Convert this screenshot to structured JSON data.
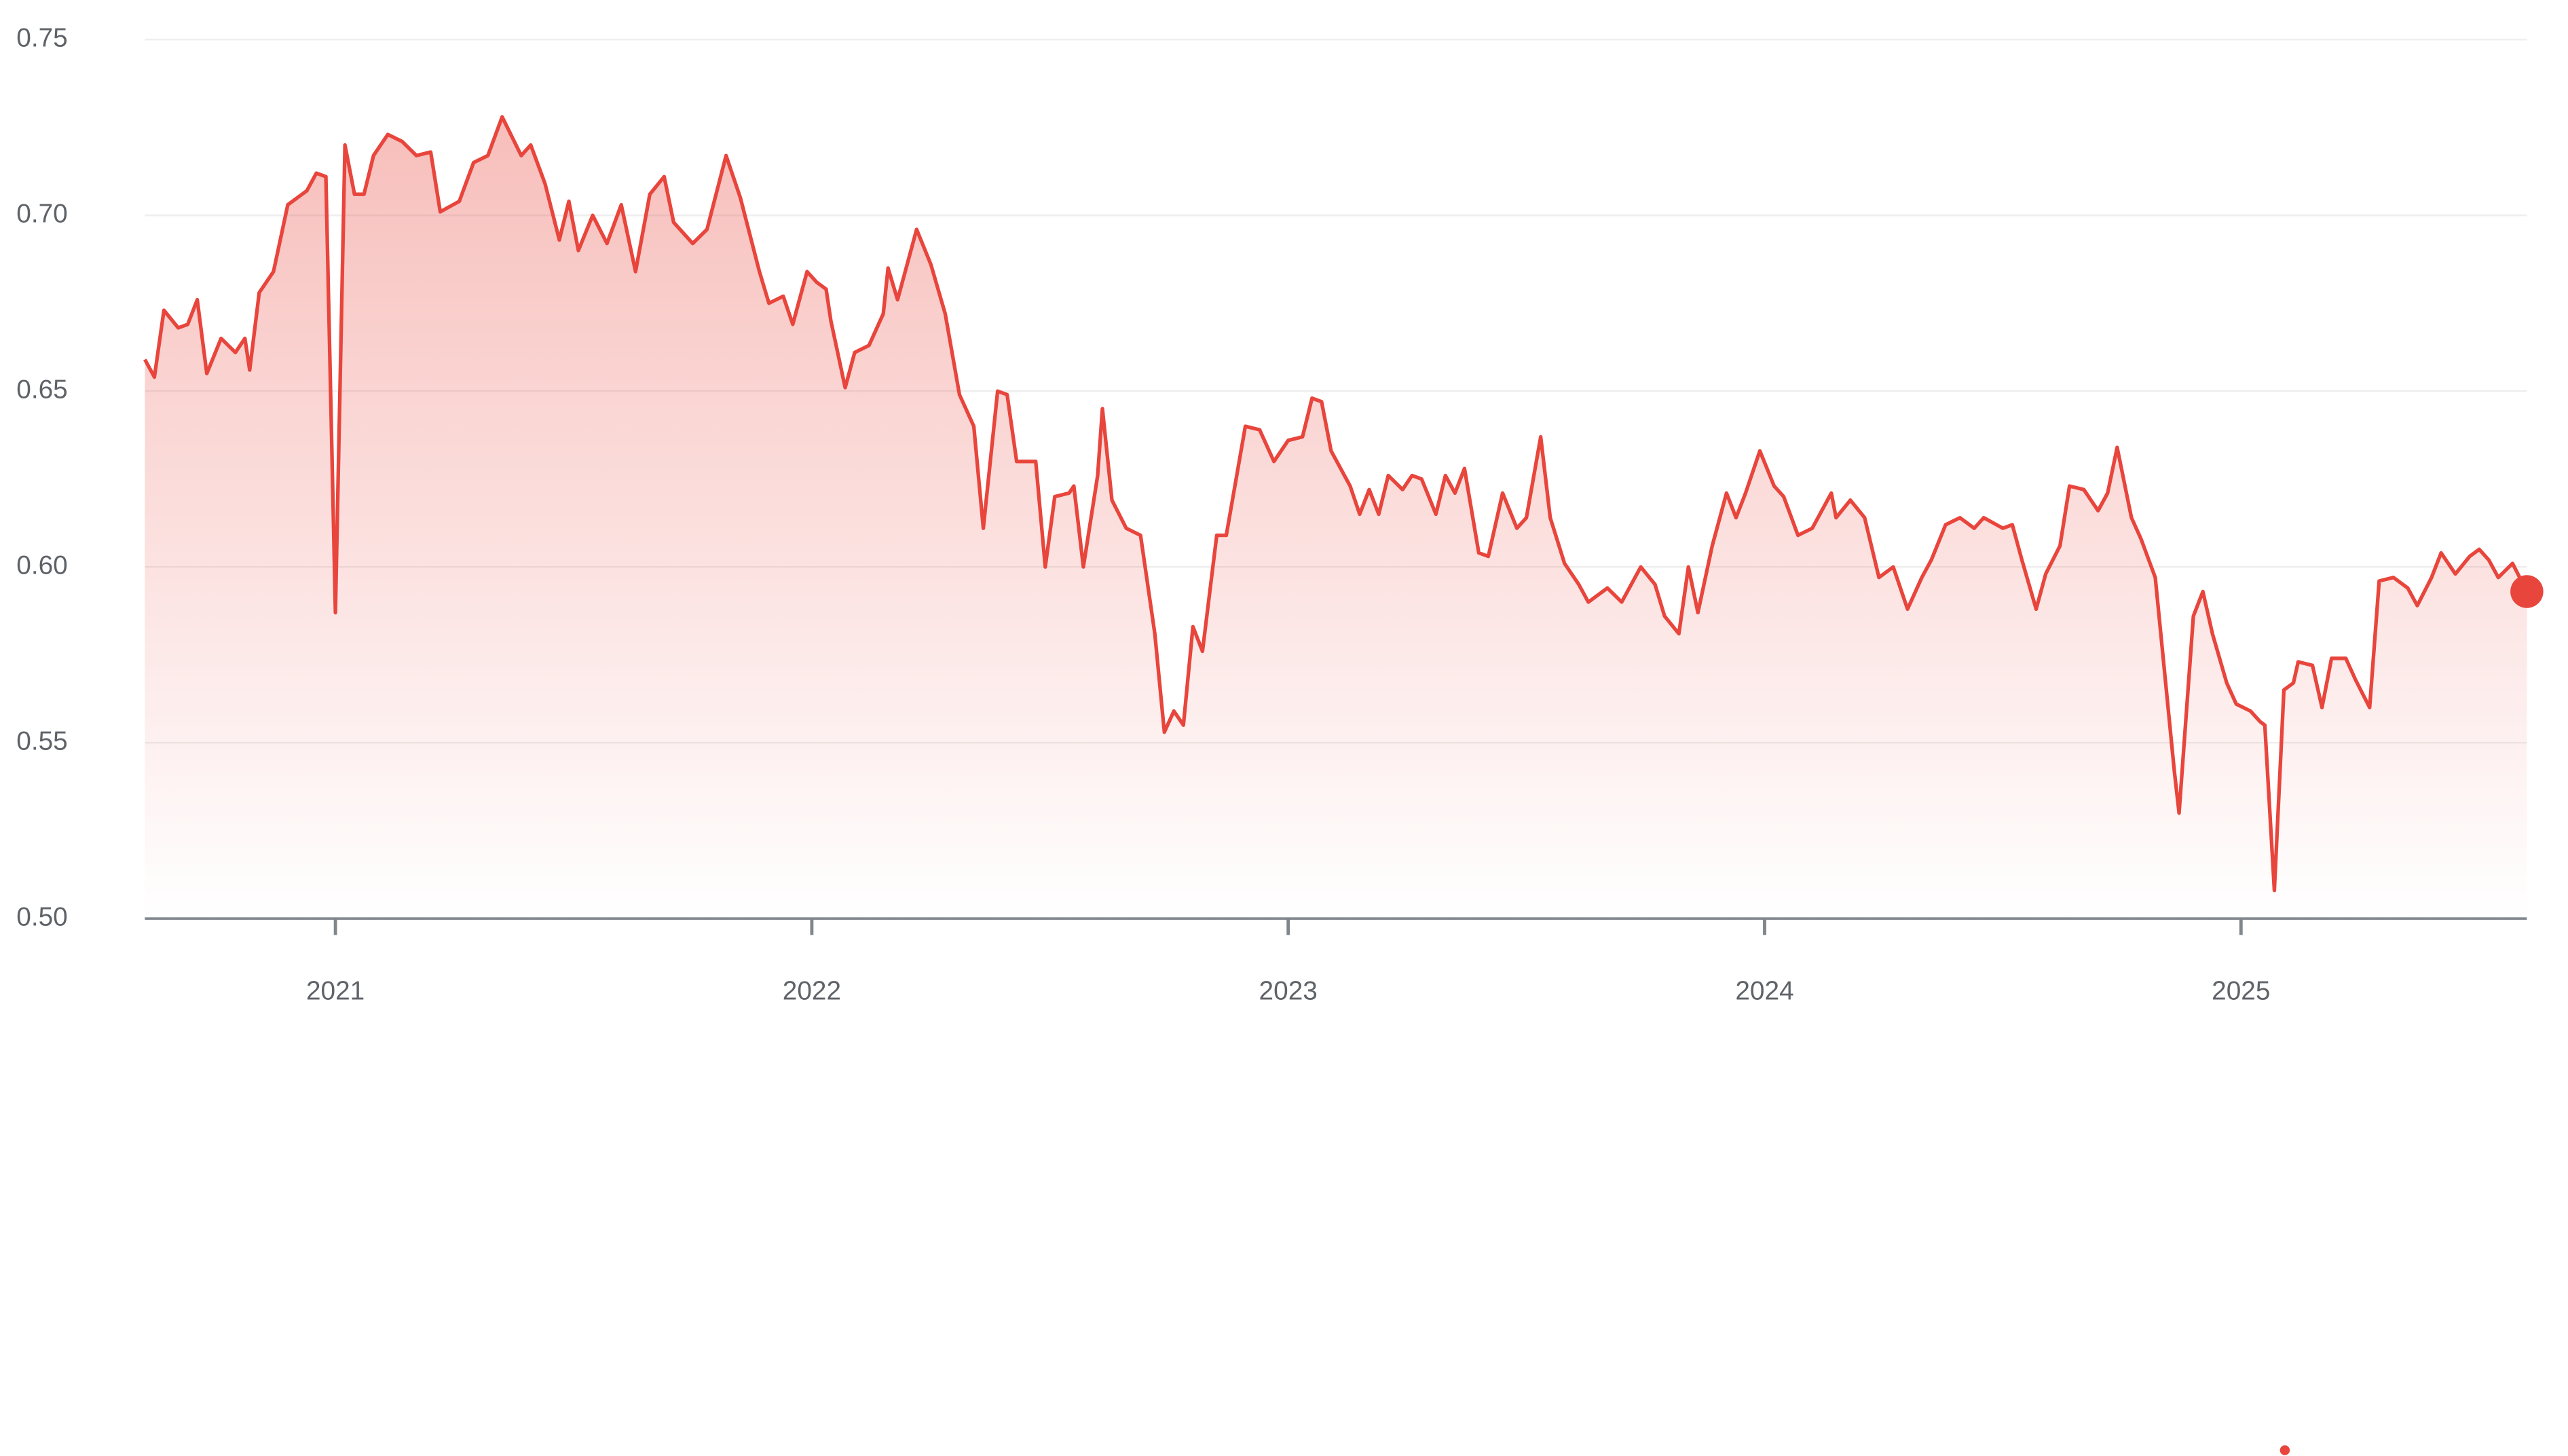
{
  "chart_data": {
    "type": "line",
    "x": [
      2020.6,
      2020.62,
      2020.64,
      2020.67,
      2020.69,
      2020.71,
      2020.73,
      2020.76,
      2020.79,
      2020.81,
      2020.82,
      2020.84,
      2020.87,
      2020.9,
      2020.94,
      2020.96,
      2020.98,
      2021.0,
      2021.02,
      2021.04,
      2021.06,
      2021.08,
      2021.11,
      2021.14,
      2021.17,
      2021.2,
      2021.22,
      2021.26,
      2021.29,
      2021.32,
      2021.35,
      2021.39,
      2021.41,
      2021.44,
      2021.47,
      2021.49,
      2021.51,
      2021.54,
      2021.57,
      2021.6,
      2021.63,
      2021.66,
      2021.69,
      2021.71,
      2021.75,
      2021.78,
      2021.82,
      2021.85,
      2021.89,
      2021.91,
      2021.94,
      2021.96,
      2021.99,
      2022.01,
      2022.03,
      2022.04,
      2022.07,
      2022.09,
      2022.12,
      2022.15,
      2022.16,
      2022.18,
      2022.22,
      2022.25,
      2022.28,
      2022.31,
      2022.34,
      2022.36,
      2022.39,
      2022.41,
      2022.43,
      2022.47,
      2022.49,
      2022.51,
      2022.54,
      2022.55,
      2022.57,
      2022.6,
      2022.61,
      2022.63,
      2022.66,
      2022.69,
      2022.72,
      2022.74,
      2022.76,
      2022.78,
      2022.8,
      2022.82,
      2022.85,
      2022.87,
      2022.91,
      2022.94,
      2022.97,
      2023.0,
      2023.03,
      2023.05,
      2023.07,
      2023.09,
      2023.13,
      2023.15,
      2023.17,
      2023.19,
      2023.21,
      2023.24,
      2023.26,
      2023.28,
      2023.31,
      2023.33,
      2023.35,
      2023.37,
      2023.4,
      2023.42,
      2023.45,
      2023.48,
      2023.5,
      2023.53,
      2023.55,
      2023.58,
      2023.61,
      2023.63,
      2023.67,
      2023.7,
      2023.74,
      2023.77,
      2023.79,
      2023.82,
      2023.84,
      2023.86,
      2023.89,
      2023.92,
      2023.94,
      2023.96,
      2023.99,
      2024.02,
      2024.04,
      2024.07,
      2024.1,
      2024.14,
      2024.15,
      2024.18,
      2024.21,
      2024.24,
      2024.27,
      2024.3,
      2024.33,
      2024.35,
      2024.38,
      2024.41,
      2024.44,
      2024.46,
      2024.5,
      2024.52,
      2024.54,
      2024.57,
      2024.59,
      2024.62,
      2024.64,
      2024.67,
      2024.7,
      2024.72,
      2024.74,
      2024.77,
      2024.79,
      2024.82,
      2024.86,
      2024.87,
      2024.9,
      2024.92,
      2024.94,
      2024.97,
      2024.99,
      2025.02,
      2025.04,
      2025.05,
      2025.07,
      2025.09,
      2025.11,
      2025.12,
      2025.15,
      2025.17,
      2025.19,
      2025.22,
      2025.24,
      2025.27,
      2025.29,
      2025.32,
      2025.35,
      2025.37,
      2025.4,
      2025.42,
      2025.45,
      2025.48,
      2025.5,
      2025.52,
      2025.54,
      2025.57,
      2025.6
    ],
    "series": [
      {
        "color": "#e8453c",
        "values": [
          0.659,
          0.654,
          0.673,
          0.668,
          0.669,
          0.676,
          0.655,
          0.665,
          0.661,
          0.665,
          0.656,
          0.678,
          0.684,
          0.703,
          0.707,
          0.712,
          0.711,
          0.587,
          0.72,
          0.706,
          0.706,
          0.717,
          0.723,
          0.721,
          0.717,
          0.718,
          0.701,
          0.704,
          0.715,
          0.717,
          0.728,
          0.717,
          0.72,
          0.709,
          0.693,
          0.704,
          0.69,
          0.7,
          0.692,
          0.703,
          0.684,
          0.706,
          0.711,
          0.698,
          0.692,
          0.696,
          0.717,
          0.705,
          0.684,
          0.675,
          0.677,
          0.669,
          0.684,
          0.681,
          0.679,
          0.67,
          0.651,
          0.661,
          0.663,
          0.672,
          0.685,
          0.676,
          0.696,
          0.686,
          0.672,
          0.649,
          0.64,
          0.611,
          0.65,
          0.649,
          0.63,
          0.63,
          0.6,
          0.62,
          0.621,
          0.623,
          0.6,
          0.626,
          0.645,
          0.619,
          0.611,
          0.609,
          0.581,
          0.553,
          0.559,
          0.555,
          0.583,
          0.576,
          0.609,
          0.609,
          0.64,
          0.639,
          0.63,
          0.636,
          0.637,
          0.648,
          0.647,
          0.633,
          0.623,
          0.615,
          0.622,
          0.615,
          0.626,
          0.622,
          0.626,
          0.625,
          0.615,
          0.626,
          0.621,
          0.628,
          0.604,
          0.603,
          0.621,
          0.611,
          0.614,
          0.637,
          0.614,
          0.601,
          0.595,
          0.59,
          0.594,
          0.59,
          0.6,
          0.595,
          0.586,
          0.581,
          0.6,
          0.587,
          0.606,
          0.621,
          0.614,
          0.621,
          0.633,
          0.623,
          0.62,
          0.609,
          0.611,
          0.621,
          0.614,
          0.619,
          0.614,
          0.597,
          0.6,
          0.588,
          0.597,
          0.602,
          0.612,
          0.614,
          0.611,
          0.614,
          0.611,
          0.612,
          0.602,
          0.588,
          0.598,
          0.606,
          0.623,
          0.622,
          0.616,
          0.621,
          0.634,
          0.614,
          0.608,
          0.597,
          0.542,
          0.53,
          0.586,
          0.593,
          0.581,
          0.567,
          0.561,
          0.559,
          0.556,
          0.555,
          0.508,
          0.565,
          0.567,
          0.573,
          0.572,
          0.56,
          0.574,
          0.574,
          0.568,
          0.56,
          0.596,
          0.597,
          0.594,
          0.589,
          0.597,
          0.604,
          0.598,
          0.603,
          0.605,
          0.602,
          0.597,
          0.601,
          0.593
        ]
      }
    ],
    "xlim": [
      2020.6,
      2025.6
    ],
    "xticks": [
      2021,
      2022,
      2023,
      2024,
      2025
    ],
    "ylim": [
      0.5,
      0.75
    ],
    "yticks": [
      {
        "value": 0.5,
        "label": "0.50"
      },
      {
        "value": 0.55,
        "label": "0.55"
      },
      {
        "value": 0.6,
        "label": "0.60"
      },
      {
        "value": 0.65,
        "label": "0.65"
      },
      {
        "value": 0.7,
        "label": "0.70"
      },
      {
        "value": 0.75,
        "label": "0.75"
      }
    ],
    "grid": true
  }
}
